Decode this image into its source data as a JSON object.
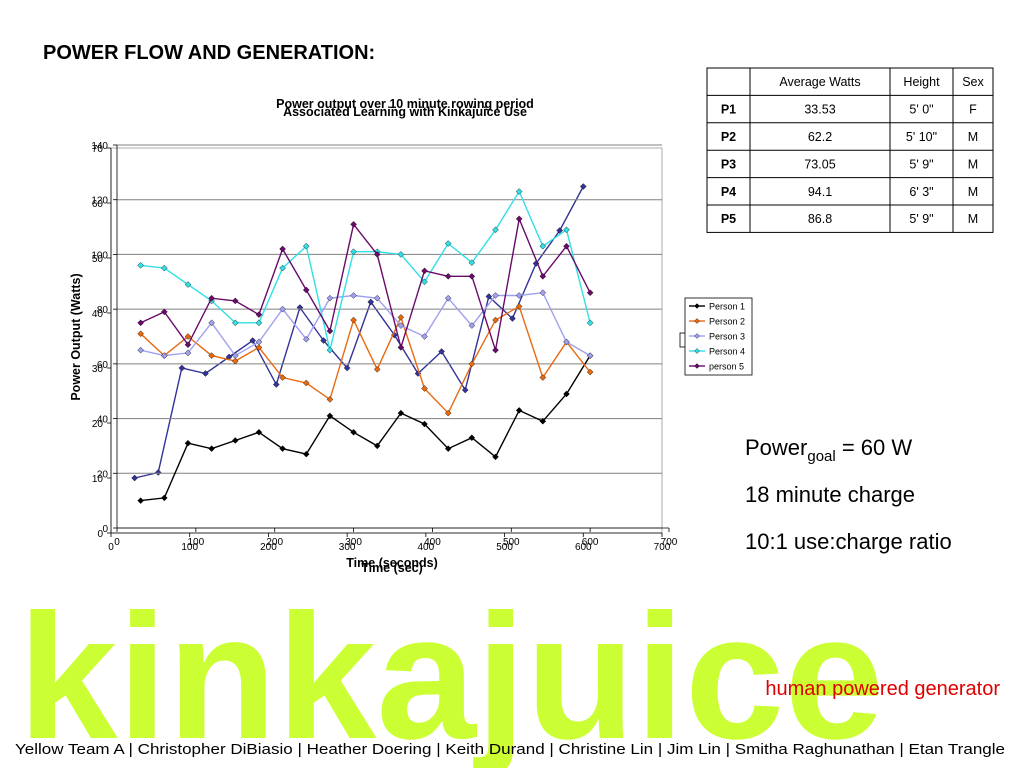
{
  "header": {
    "title": "POWER FLOW AND GENERATION:"
  },
  "chart_data": [
    {
      "type": "line",
      "title": "Power output over 10 minute rowing period",
      "xlabel": "Time (seconds)",
      "ylabel": "Power Output (Watts)",
      "x": [
        30,
        60,
        90,
        120,
        150,
        180,
        210,
        240,
        270,
        300,
        330,
        360,
        390,
        420,
        450,
        480,
        510,
        540,
        570,
        600
      ],
      "xlim": [
        0,
        700
      ],
      "xticks": [
        0,
        100,
        200,
        300,
        400,
        500,
        600,
        700
      ],
      "ylim": [
        0,
        140
      ],
      "yticks": [
        0,
        20,
        40,
        60,
        80,
        100,
        120,
        140
      ],
      "grid": true,
      "legend": "right",
      "series": [
        {
          "name": "Person 1",
          "color": "#000000",
          "values": [
            10,
            11,
            31,
            29,
            32,
            35,
            29,
            27,
            41,
            35,
            30,
            42,
            38,
            29,
            33,
            26,
            43,
            39,
            49,
            63
          ]
        },
        {
          "name": "Person 2",
          "color": "#e86a10",
          "values": [
            71,
            63,
            70,
            63,
            61,
            66,
            55,
            53,
            47,
            76,
            58,
            77,
            51,
            42,
            60,
            76,
            81,
            55,
            68,
            57
          ]
        },
        {
          "name": "Person 3",
          "color": "#a0a0f0",
          "values": [
            65,
            63,
            64,
            75,
            63,
            68,
            80,
            69,
            84,
            85,
            84,
            74,
            70,
            84,
            74,
            85,
            85,
            86,
            68,
            63
          ]
        },
        {
          "name": "Person 4",
          "color": "#33dfe6",
          "values": [
            96,
            95,
            89,
            83,
            75,
            75,
            95,
            103,
            65,
            101,
            101,
            100,
            90,
            104,
            97,
            109,
            123,
            103,
            109,
            75
          ]
        },
        {
          "name": "person 5",
          "color": "#6a0a6a",
          "values": [
            75,
            79,
            67,
            84,
            83,
            78,
            102,
            87,
            72,
            111,
            100,
            66,
            94,
            92,
            92,
            65,
            113,
            92,
            103,
            86
          ]
        }
      ]
    },
    {
      "type": "line",
      "title": "Associated Learning with Kinkajuice Use",
      "xlabel": "Time (sec)",
      "x": [
        30,
        60,
        90,
        120,
        150,
        180,
        210,
        240,
        270,
        300,
        330,
        360,
        390,
        420,
        450,
        480,
        510,
        540,
        570,
        600
      ],
      "xlim": [
        0,
        700
      ],
      "xticks": [
        0,
        100,
        200,
        300,
        400,
        500,
        600,
        700
      ],
      "ylim": [
        0,
        70
      ],
      "yticks": [
        0,
        10,
        20,
        30,
        40,
        50,
        60,
        70
      ],
      "series": [
        {
          "color": "#333399",
          "values": [
            10,
            11,
            30,
            29,
            32,
            35,
            27,
            41,
            35,
            30,
            42,
            36,
            29,
            33,
            26,
            43,
            39,
            49,
            55,
            63
          ]
        }
      ]
    }
  ],
  "table": {
    "columns": [
      "Average Watts",
      "Height",
      "Sex"
    ],
    "rows": [
      [
        "P1",
        33.53,
        "5' 0\"",
        "F"
      ],
      [
        "P2",
        62.2,
        "5' 10\"",
        "M"
      ],
      [
        "P3",
        73.05,
        "5' 9\"",
        "M"
      ],
      [
        "P4",
        94.1,
        "6' 3\"",
        "M"
      ],
      [
        "P5",
        86.8,
        "5' 9\"",
        "M"
      ]
    ]
  },
  "notes": {
    "goal": {
      "text": "Power",
      "subscript": "goal",
      "rest": " = 60 W"
    },
    "items": [
      "18 minute charge",
      "10:1 use:charge ratio"
    ]
  },
  "brand": {
    "name": "kinkajuice",
    "tagline": "human powered generator"
  },
  "footer": "Yellow Team A | Christopher DiBiasio | Heather Doering | Keith Durand | Christine Lin | Jim Lin | Smitha Raghunathan | Etan Trangle"
}
